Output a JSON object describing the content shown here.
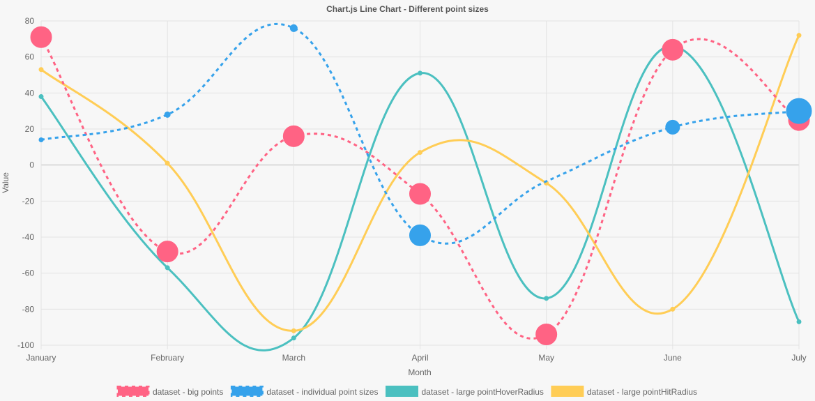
{
  "chart_data": {
    "type": "line",
    "title": "Chart.js Line Chart - Different point sizes",
    "xlabel": "Month",
    "ylabel": "Value",
    "categories": [
      "January",
      "February",
      "March",
      "April",
      "May",
      "June",
      "July"
    ],
    "ylim": [
      -100,
      80
    ],
    "yticks": [
      80,
      60,
      40,
      20,
      0,
      -20,
      -40,
      -60,
      -80,
      -100
    ],
    "grid": true,
    "legend_position": "bottom",
    "series": [
      {
        "name": "dataset - big points",
        "values": [
          71,
          -48,
          16,
          -16,
          -94,
          64,
          25
        ],
        "color": "#ff6384",
        "dashed": true,
        "point_radius": "large"
      },
      {
        "name": "dataset - individual point sizes",
        "values": [
          14,
          28,
          76,
          -39,
          -9,
          21,
          30
        ],
        "color": "#36a2eb",
        "dashed": true,
        "point_radius": "varied"
      },
      {
        "name": "dataset - large pointHoverRadius",
        "values": [
          38,
          -57,
          -96,
          51,
          -74,
          66,
          -87
        ],
        "color": "#4bc0c0",
        "dashed": false,
        "point_radius": "small"
      },
      {
        "name": "dataset - large pointHitRadius",
        "values": [
          53,
          1,
          -92,
          7,
          -10,
          -80,
          72
        ],
        "color": "#ffcd56",
        "dashed": false,
        "point_radius": "small"
      }
    ]
  }
}
